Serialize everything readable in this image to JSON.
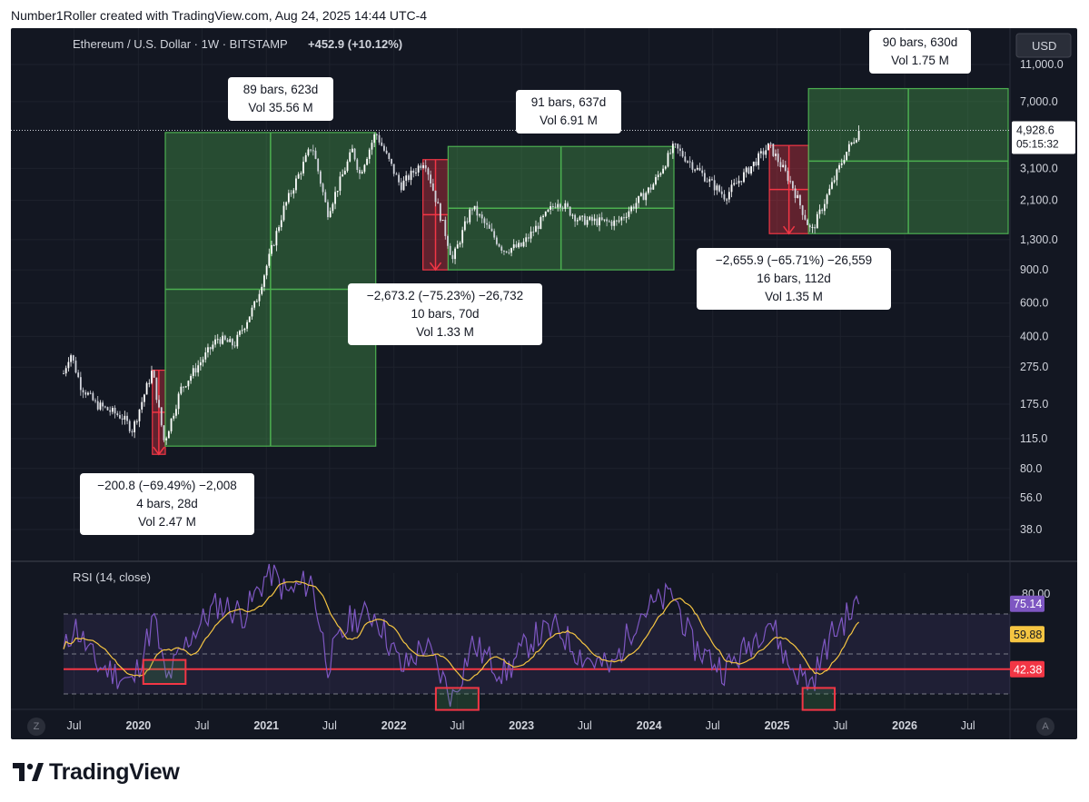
{
  "header": {
    "text": "Number1Roller created with TradingView.com, Aug 24, 2025 14:44 UTC-4"
  },
  "symbol_info": "Ethereum / U.S. Dollar · 1W · BITSTAMP",
  "symbol_change": "+452.9 (+10.12%)",
  "currency_button": "USD",
  "rsi_label": "RSI (14, close)",
  "footer": {
    "brand": "TradingView"
  },
  "corner_left": "Z",
  "corner_right": "A",
  "colors": {
    "background": "#131722",
    "up_box": "#4caf50",
    "down_box": "#f23645",
    "rsi_line": "#7e57c2",
    "rsi_ma": "#f5c542",
    "rsi_level": "#f23645",
    "price_tag": "#ffffff",
    "rsi_value_tag": "#7e57c2",
    "rsi_ma_tag": "#f5c542",
    "level_tag": "#f23645"
  },
  "chart_data": {
    "type": "candlestick",
    "scale": "log",
    "current_price": "4,928.6",
    "countdown": "05:15:32",
    "y_ticks": [
      "11,000.0",
      "7,000.0",
      "3,100.0",
      "2,100.0",
      "1,300.0",
      "900.0",
      "600.0",
      "400.0",
      "275.0",
      "175.0",
      "115.0",
      "80.0",
      "56.0",
      "38.0"
    ],
    "x_ticks": [
      "Jul",
      "2020",
      "Jul",
      "2021",
      "Jul",
      "2022",
      "Jul",
      "2023",
      "Jul",
      "2024",
      "Jul",
      "2025",
      "Jul",
      "2026",
      "Jul"
    ],
    "price_path": [
      [
        "2019-06-01",
        255
      ],
      [
        "2019-06-20",
        330
      ],
      [
        "2019-07-20",
        220
      ],
      [
        "2019-09-01",
        175
      ],
      [
        "2019-10-01",
        165
      ],
      [
        "2019-11-15",
        150
      ],
      [
        "2019-12-15",
        128
      ],
      [
        "2020-02-10",
        265
      ],
      [
        "2020-03-15",
        110
      ],
      [
        "2020-05-01",
        210
      ],
      [
        "2020-08-15",
        390
      ],
      [
        "2020-10-01",
        360
      ],
      [
        "2020-12-01",
        600
      ],
      [
        "2021-02-20",
        1900
      ],
      [
        "2021-05-12",
        4150
      ],
      [
        "2021-06-25",
        1800
      ],
      [
        "2021-09-05",
        3900
      ],
      [
        "2021-09-25",
        2900
      ],
      [
        "2021-11-10",
        4800
      ],
      [
        "2022-01-20",
        2500
      ],
      [
        "2022-03-30",
        3450
      ],
      [
        "2022-06-18",
        1020
      ],
      [
        "2022-08-12",
        1950
      ],
      [
        "2022-11-10",
        1150
      ],
      [
        "2022-12-31",
        1200
      ],
      [
        "2023-04-15",
        2100
      ],
      [
        "2023-06-15",
        1650
      ],
      [
        "2023-10-01",
        1600
      ],
      [
        "2024-01-10",
        2500
      ],
      [
        "2024-03-12",
        4050
      ],
      [
        "2024-08-05",
        2200
      ],
      [
        "2024-12-10",
        4100
      ],
      [
        "2025-02-10",
        2600
      ],
      [
        "2025-04-09",
        1420
      ],
      [
        "2025-07-15",
        3700
      ],
      [
        "2025-08-24",
        4928.6
      ]
    ],
    "rsi_ticks": [
      "80.00"
    ],
    "rsi_values": {
      "rsi": "75.14",
      "rsi_ma": "59.88",
      "level": "42.38"
    },
    "rsi_path": [
      [
        "2019-06-01",
        50
      ],
      [
        "2019-07-01",
        65
      ],
      [
        "2019-09-01",
        45
      ],
      [
        "2019-11-01",
        40
      ],
      [
        "2019-12-15",
        35
      ],
      [
        "2020-02-15",
        68
      ],
      [
        "2020-03-20",
        36
      ],
      [
        "2020-06-01",
        60
      ],
      [
        "2020-08-15",
        75
      ],
      [
        "2020-11-01",
        70
      ],
      [
        "2021-01-10",
        92
      ],
      [
        "2021-03-01",
        80
      ],
      [
        "2021-05-10",
        87
      ],
      [
        "2021-06-25",
        45
      ],
      [
        "2021-09-01",
        68
      ],
      [
        "2021-11-10",
        70
      ],
      [
        "2022-01-25",
        42
      ],
      [
        "2022-03-30",
        55
      ],
      [
        "2022-06-18",
        28
      ],
      [
        "2022-08-12",
        55
      ],
      [
        "2022-11-15",
        40
      ],
      [
        "2023-02-01",
        58
      ],
      [
        "2023-04-15",
        63
      ],
      [
        "2023-06-15",
        50
      ],
      [
        "2023-09-15",
        42
      ],
      [
        "2023-12-01",
        70
      ],
      [
        "2024-03-12",
        80
      ],
      [
        "2024-05-01",
        55
      ],
      [
        "2024-08-05",
        42
      ],
      [
        "2024-10-01",
        52
      ],
      [
        "2024-12-10",
        68
      ],
      [
        "2025-02-01",
        45
      ],
      [
        "2025-04-09",
        35
      ],
      [
        "2025-06-01",
        58
      ],
      [
        "2025-07-01",
        65
      ],
      [
        "2025-08-24",
        75.14
      ]
    ]
  },
  "measurements": [
    {
      "lines": [
        "−200.8 (−69.49%) −2,008",
        "4 bars, 28d",
        "Vol 2.47 M"
      ],
      "type": "down"
    },
    {
      "lines": [
        "89 bars, 623d",
        "Vol 35.56 M"
      ],
      "type": "up"
    },
    {
      "lines": [
        "−2,673.2 (−75.23%) −26,732",
        "10 bars, 70d",
        "Vol 1.33 M"
      ],
      "type": "down"
    },
    {
      "lines": [
        "91 bars, 637d",
        "Vol 6.91 M"
      ],
      "type": "up"
    },
    {
      "lines": [
        "−2,655.9 (−65.71%) −26,559",
        "16 bars, 112d",
        "Vol 1.35 M"
      ],
      "type": "down"
    },
    {
      "lines": [
        "90 bars, 630d",
        "Vol 1.75 M"
      ],
      "type": "up"
    }
  ]
}
